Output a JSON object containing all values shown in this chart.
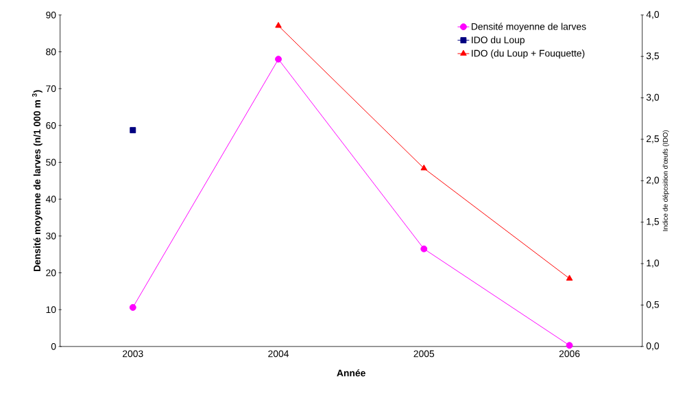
{
  "chart_data": {
    "type": "line",
    "xlabel": "Année",
    "ylabel": "Densité moyenne de larves (n/1 000 m $^{3}$)",
    "y2label": "Indice de déposition d'œufs (IDO)",
    "categories": [
      "2003",
      "2004",
      "2005",
      "2006"
    ],
    "series": [
      {
        "name": "Densité moyenne de larves",
        "color": "#ff00ff",
        "marker": "circle",
        "values": [
          10.6,
          78.0,
          26.5,
          0.3
        ]
      },
      {
        "name": "IDO du Loup",
        "color": "#000080",
        "marker": "square",
        "axis": "y2",
        "values": [
          2.61,
          null,
          null,
          null
        ]
      },
      {
        "name": "IDO (du Loup + Fouquette)",
        "color": "#ff0000",
        "marker": "triangle",
        "axis": "y2",
        "values": [
          null,
          3.87,
          2.15,
          0.82
        ]
      }
    ],
    "ylim": [
      0,
      90
    ],
    "yticks": [
      0,
      10,
      20,
      30,
      40,
      50,
      60,
      70,
      80,
      90
    ],
    "y2lim": [
      0,
      4
    ],
    "y2ticks": [
      {
        "value": 0,
        "label": "0,0"
      },
      {
        "value": 0.5,
        "label": "0,5"
      },
      {
        "value": 1,
        "label": "1,0"
      },
      {
        "value": 1.5,
        "label": "1,5"
      },
      {
        "value": 2,
        "label": "2,0"
      },
      {
        "value": 2.5,
        "label": "2,5"
      },
      {
        "value": 3,
        "label": "3,0"
      },
      {
        "value": 3.5,
        "label": "3,5"
      },
      {
        "value": 4,
        "label": "4,0"
      }
    ],
    "legend": "top right"
  }
}
